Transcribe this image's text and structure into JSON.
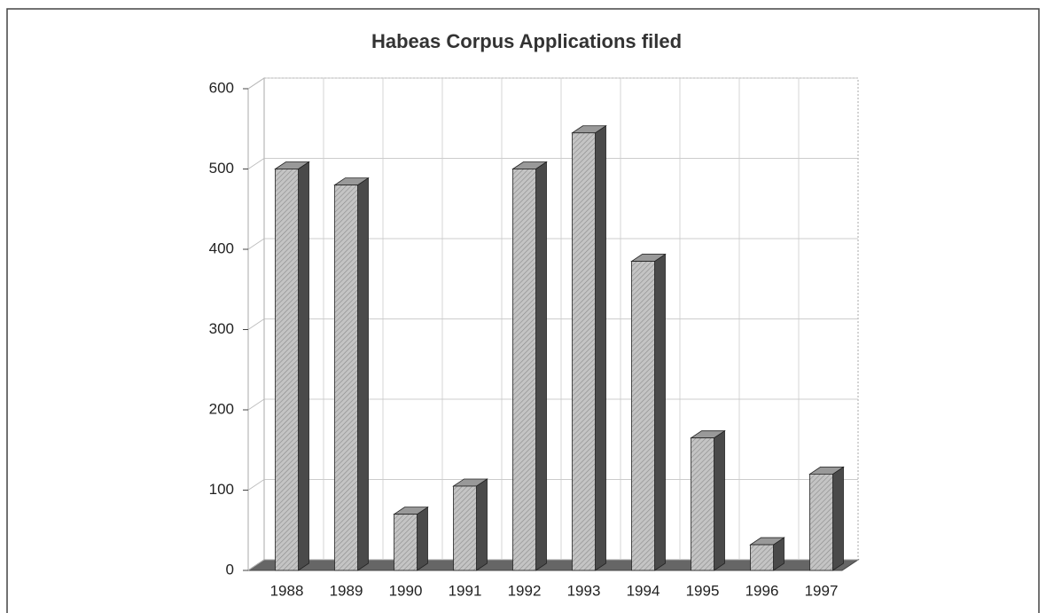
{
  "chart_data": {
    "type": "bar3d",
    "title": "Habeas Corpus Applications filed",
    "categories": [
      "1988",
      "1989",
      "1990",
      "1991",
      "1992",
      "1993",
      "1994",
      "1995",
      "1996",
      "1997"
    ],
    "values": [
      500,
      480,
      70,
      105,
      500,
      545,
      385,
      165,
      32,
      120
    ],
    "color": "#b8b8b8",
    "ylim": [
      0,
      600
    ],
    "yticks": [
      0,
      100,
      200,
      300,
      400,
      500,
      600
    ],
    "grid": true
  }
}
